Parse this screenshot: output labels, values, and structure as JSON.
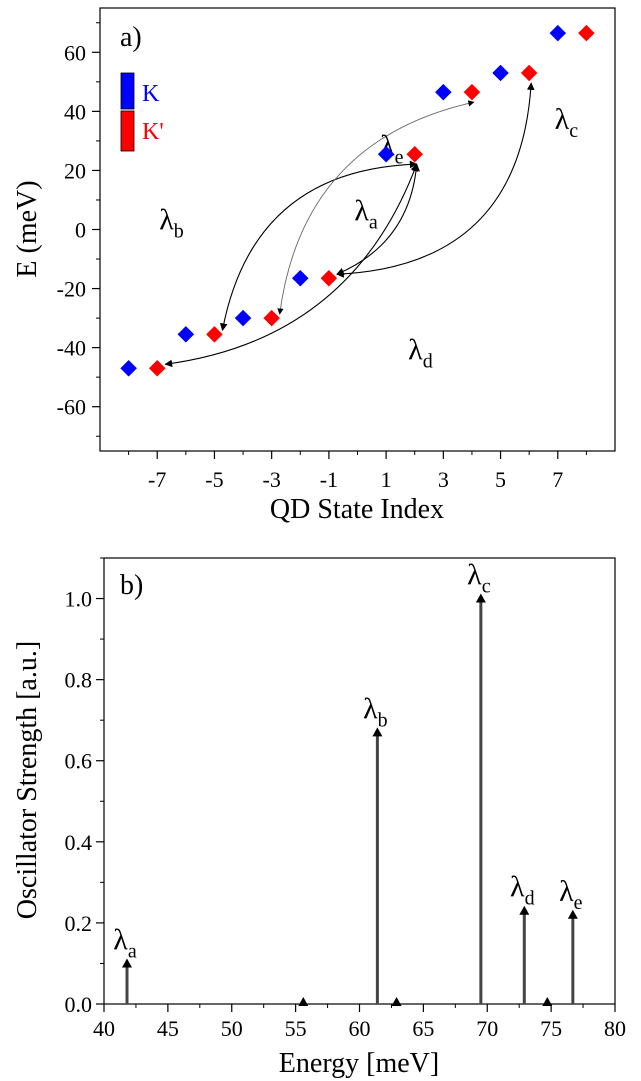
{
  "chart_data": [
    {
      "panel_label": "a)",
      "type": "scatter",
      "xlabel": "QD State Index",
      "ylabel": "E (meV)",
      "xlim": [
        -9,
        9
      ],
      "ylim": [
        -75,
        75
      ],
      "xticks": [
        -7,
        -5,
        -3,
        -1,
        1,
        3,
        5,
        7
      ],
      "yticks": [
        -60,
        -40,
        -20,
        0,
        20,
        40,
        60
      ],
      "legend": {
        "position": "top-left",
        "entries": [
          {
            "label": "K",
            "color": "#0000ff"
          },
          {
            "label": "K'",
            "color": "#ff0000"
          }
        ]
      },
      "series": [
        {
          "name": "K",
          "color": "#0000ff",
          "x": [
            -8,
            -6,
            -4,
            -2,
            1,
            3,
            5,
            7
          ],
          "y": [
            -47,
            -35.5,
            -30,
            -16.5,
            25.5,
            46.5,
            53,
            66.5
          ]
        },
        {
          "name": "K'",
          "color": "#ff0000",
          "x": [
            -7,
            -5,
            -3,
            -1,
            2,
            4,
            6,
            8
          ],
          "y": [
            -47,
            -35.5,
            -30,
            -16.5,
            25.5,
            46.5,
            53,
            66.5
          ]
        }
      ],
      "transitions": [
        {
          "label": "λ",
          "sub": "a",
          "from": [
            -1,
            -16.5
          ],
          "to": [
            2,
            25.5
          ]
        },
        {
          "label": "λ",
          "sub": "b",
          "from": [
            -5,
            -35.5
          ],
          "to": [
            2,
            25.5
          ]
        },
        {
          "label": "λ",
          "sub": "c",
          "from": [
            -1,
            -16.5
          ],
          "to": [
            6,
            53
          ]
        },
        {
          "label": "λ",
          "sub": "d",
          "from": [
            -7,
            -47
          ],
          "to": [
            2,
            25.5
          ]
        },
        {
          "label": "λ",
          "sub": "e",
          "from": [
            -3,
            -30
          ],
          "to": [
            4,
            46.5
          ]
        }
      ]
    },
    {
      "panel_label": "b)",
      "type": "bar",
      "xlabel": "Energy [meV]",
      "ylabel": "Oscillator Strength [a.u.]",
      "xlim": [
        40,
        80
      ],
      "ylim": [
        0,
        1.1
      ],
      "xticks": [
        40,
        45,
        50,
        55,
        60,
        65,
        70,
        75,
        80
      ],
      "yticks": [
        0.0,
        0.2,
        0.4,
        0.6,
        0.8,
        1.0
      ],
      "peaks": [
        {
          "x": 41.8,
          "y": 0.1,
          "label": "λ",
          "sub": "a"
        },
        {
          "x": 55.6,
          "y": 0.005,
          "label": "",
          "sub": ""
        },
        {
          "x": 61.4,
          "y": 0.67,
          "label": "λ",
          "sub": "b"
        },
        {
          "x": 62.9,
          "y": 0.005,
          "label": "",
          "sub": ""
        },
        {
          "x": 69.5,
          "y": 1.0,
          "label": "λ",
          "sub": "c"
        },
        {
          "x": 72.9,
          "y": 0.23,
          "label": "λ",
          "sub": "d"
        },
        {
          "x": 74.7,
          "y": 0.005,
          "label": "",
          "sub": ""
        },
        {
          "x": 76.7,
          "y": 0.22,
          "label": "λ",
          "sub": "e"
        }
      ]
    }
  ]
}
